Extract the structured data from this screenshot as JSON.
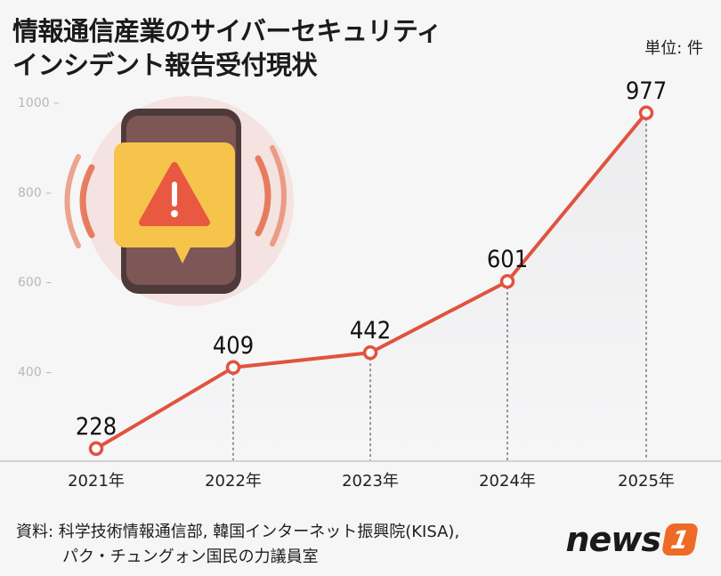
{
  "header": {
    "title_line1": "情報通信産業のサイバーセキュリティ",
    "title_line2": "インシデント報告受付現状",
    "unit": "単位: 件"
  },
  "colors": {
    "line": "#e0533f",
    "axis": "#d2d2d4",
    "tick_text": "#b8b8bc",
    "background": "#f6f6f7"
  },
  "illustration": {
    "icon": "phone-warning-alert-icon"
  },
  "chart_data": {
    "type": "line",
    "title": "情報通信産業のサイバーセキュリティインシデント報告受付現状",
    "unit": "単位: 件",
    "categories": [
      "2021年",
      "2022年",
      "2023年",
      "2024年",
      "2025年"
    ],
    "series": [
      {
        "values": [
          228,
          409,
          442,
          601,
          977
        ]
      }
    ],
    "yticks": [
      400,
      600,
      800,
      1000
    ],
    "ylim": [
      200,
      1000
    ],
    "grid": false,
    "data_labels": true
  },
  "footer": {
    "source_line1": "資料: 科学技術情報通信部, 韓国インターネット振興院(KISA),",
    "source_line2": "パク・チュングォン国民の力議員室",
    "logo_text": "news",
    "logo_badge": "1"
  }
}
